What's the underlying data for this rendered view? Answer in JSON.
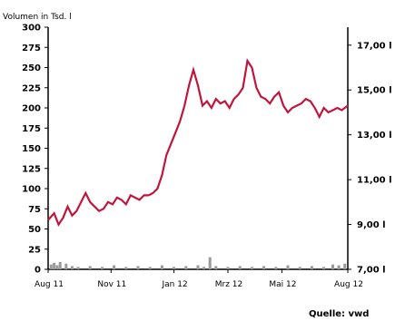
{
  "chart_data": {
    "type": "line",
    "title": "",
    "left_axis_label": "Volumen in Tsd. l",
    "source": "Quelle: vwd",
    "colors": {
      "price_line": "#c0163c",
      "volume_bars": "#9a9a9a",
      "axes": "#000000"
    },
    "x_ticks": [
      "Aug 11",
      "Nov 11",
      "Jan 12",
      "Mrz 12",
      "Mai 12",
      "Aug 12"
    ],
    "left_axis": {
      "ticks": [
        0,
        25,
        50,
        75,
        100,
        125,
        150,
        175,
        200,
        225,
        250,
        275,
        300
      ],
      "range": [
        0,
        300
      ]
    },
    "right_axis": {
      "ticks": [
        "7,00 l",
        "9,00 l",
        "11,00 l",
        "13,00 l",
        "15,00 l",
        "17,00 l"
      ],
      "range": [
        7,
        17.8
      ]
    },
    "series": [
      {
        "axis": "right",
        "x_fraction": [
          0,
          0.02,
          0.035,
          0.05,
          0.065,
          0.08,
          0.095,
          0.11,
          0.125,
          0.14,
          0.155,
          0.17,
          0.185,
          0.2,
          0.215,
          0.23,
          0.245,
          0.26,
          0.275,
          0.29,
          0.305,
          0.32,
          0.335,
          0.35,
          0.365,
          0.38,
          0.395,
          0.41,
          0.425,
          0.44,
          0.455,
          0.47,
          0.485,
          0.5,
          0.515,
          0.53,
          0.545,
          0.56,
          0.575,
          0.59,
          0.605,
          0.62,
          0.635,
          0.65,
          0.665,
          0.68,
          0.695,
          0.71,
          0.725,
          0.74,
          0.755,
          0.77,
          0.785,
          0.8,
          0.815,
          0.83,
          0.845,
          0.86,
          0.875,
          0.89,
          0.905,
          0.92,
          0.935,
          0.95,
          0.965,
          0.98,
          1.0
        ],
        "values": [
          9.2,
          9.5,
          9.0,
          9.3,
          9.8,
          9.4,
          9.6,
          10.0,
          10.4,
          10.0,
          9.8,
          9.6,
          9.7,
          10.0,
          9.9,
          10.2,
          10.1,
          9.9,
          10.3,
          10.2,
          10.1,
          10.3,
          10.3,
          10.4,
          10.6,
          11.2,
          12.1,
          12.6,
          13.1,
          13.6,
          14.3,
          15.2,
          15.9,
          15.2,
          14.3,
          14.5,
          14.2,
          14.6,
          14.4,
          14.5,
          14.2,
          14.6,
          14.8,
          15.1,
          16.3,
          16.0,
          15.1,
          14.7,
          14.6,
          14.4,
          14.7,
          14.9,
          14.3,
          14.0,
          14.2,
          14.3,
          14.4,
          14.6,
          14.5,
          14.2,
          13.8,
          14.2,
          14.0,
          14.1,
          14.2,
          14.1,
          14.3
        ]
      },
      {
        "axis": "left",
        "type": "bar",
        "x_fraction": [
          0.01,
          0.02,
          0.03,
          0.04,
          0.06,
          0.08,
          0.1,
          0.14,
          0.18,
          0.22,
          0.26,
          0.3,
          0.34,
          0.38,
          0.42,
          0.46,
          0.5,
          0.52,
          0.54,
          0.56,
          0.6,
          0.64,
          0.68,
          0.72,
          0.76,
          0.8,
          0.84,
          0.88,
          0.92,
          0.95,
          0.97,
          0.99
        ],
        "values": [
          6,
          8,
          5,
          9,
          7,
          4,
          3,
          4,
          3,
          5,
          3,
          4,
          3,
          5,
          3,
          4,
          5,
          3,
          15,
          4,
          3,
          4,
          3,
          4,
          3,
          5,
          3,
          4,
          3,
          6,
          5,
          7
        ]
      }
    ]
  }
}
